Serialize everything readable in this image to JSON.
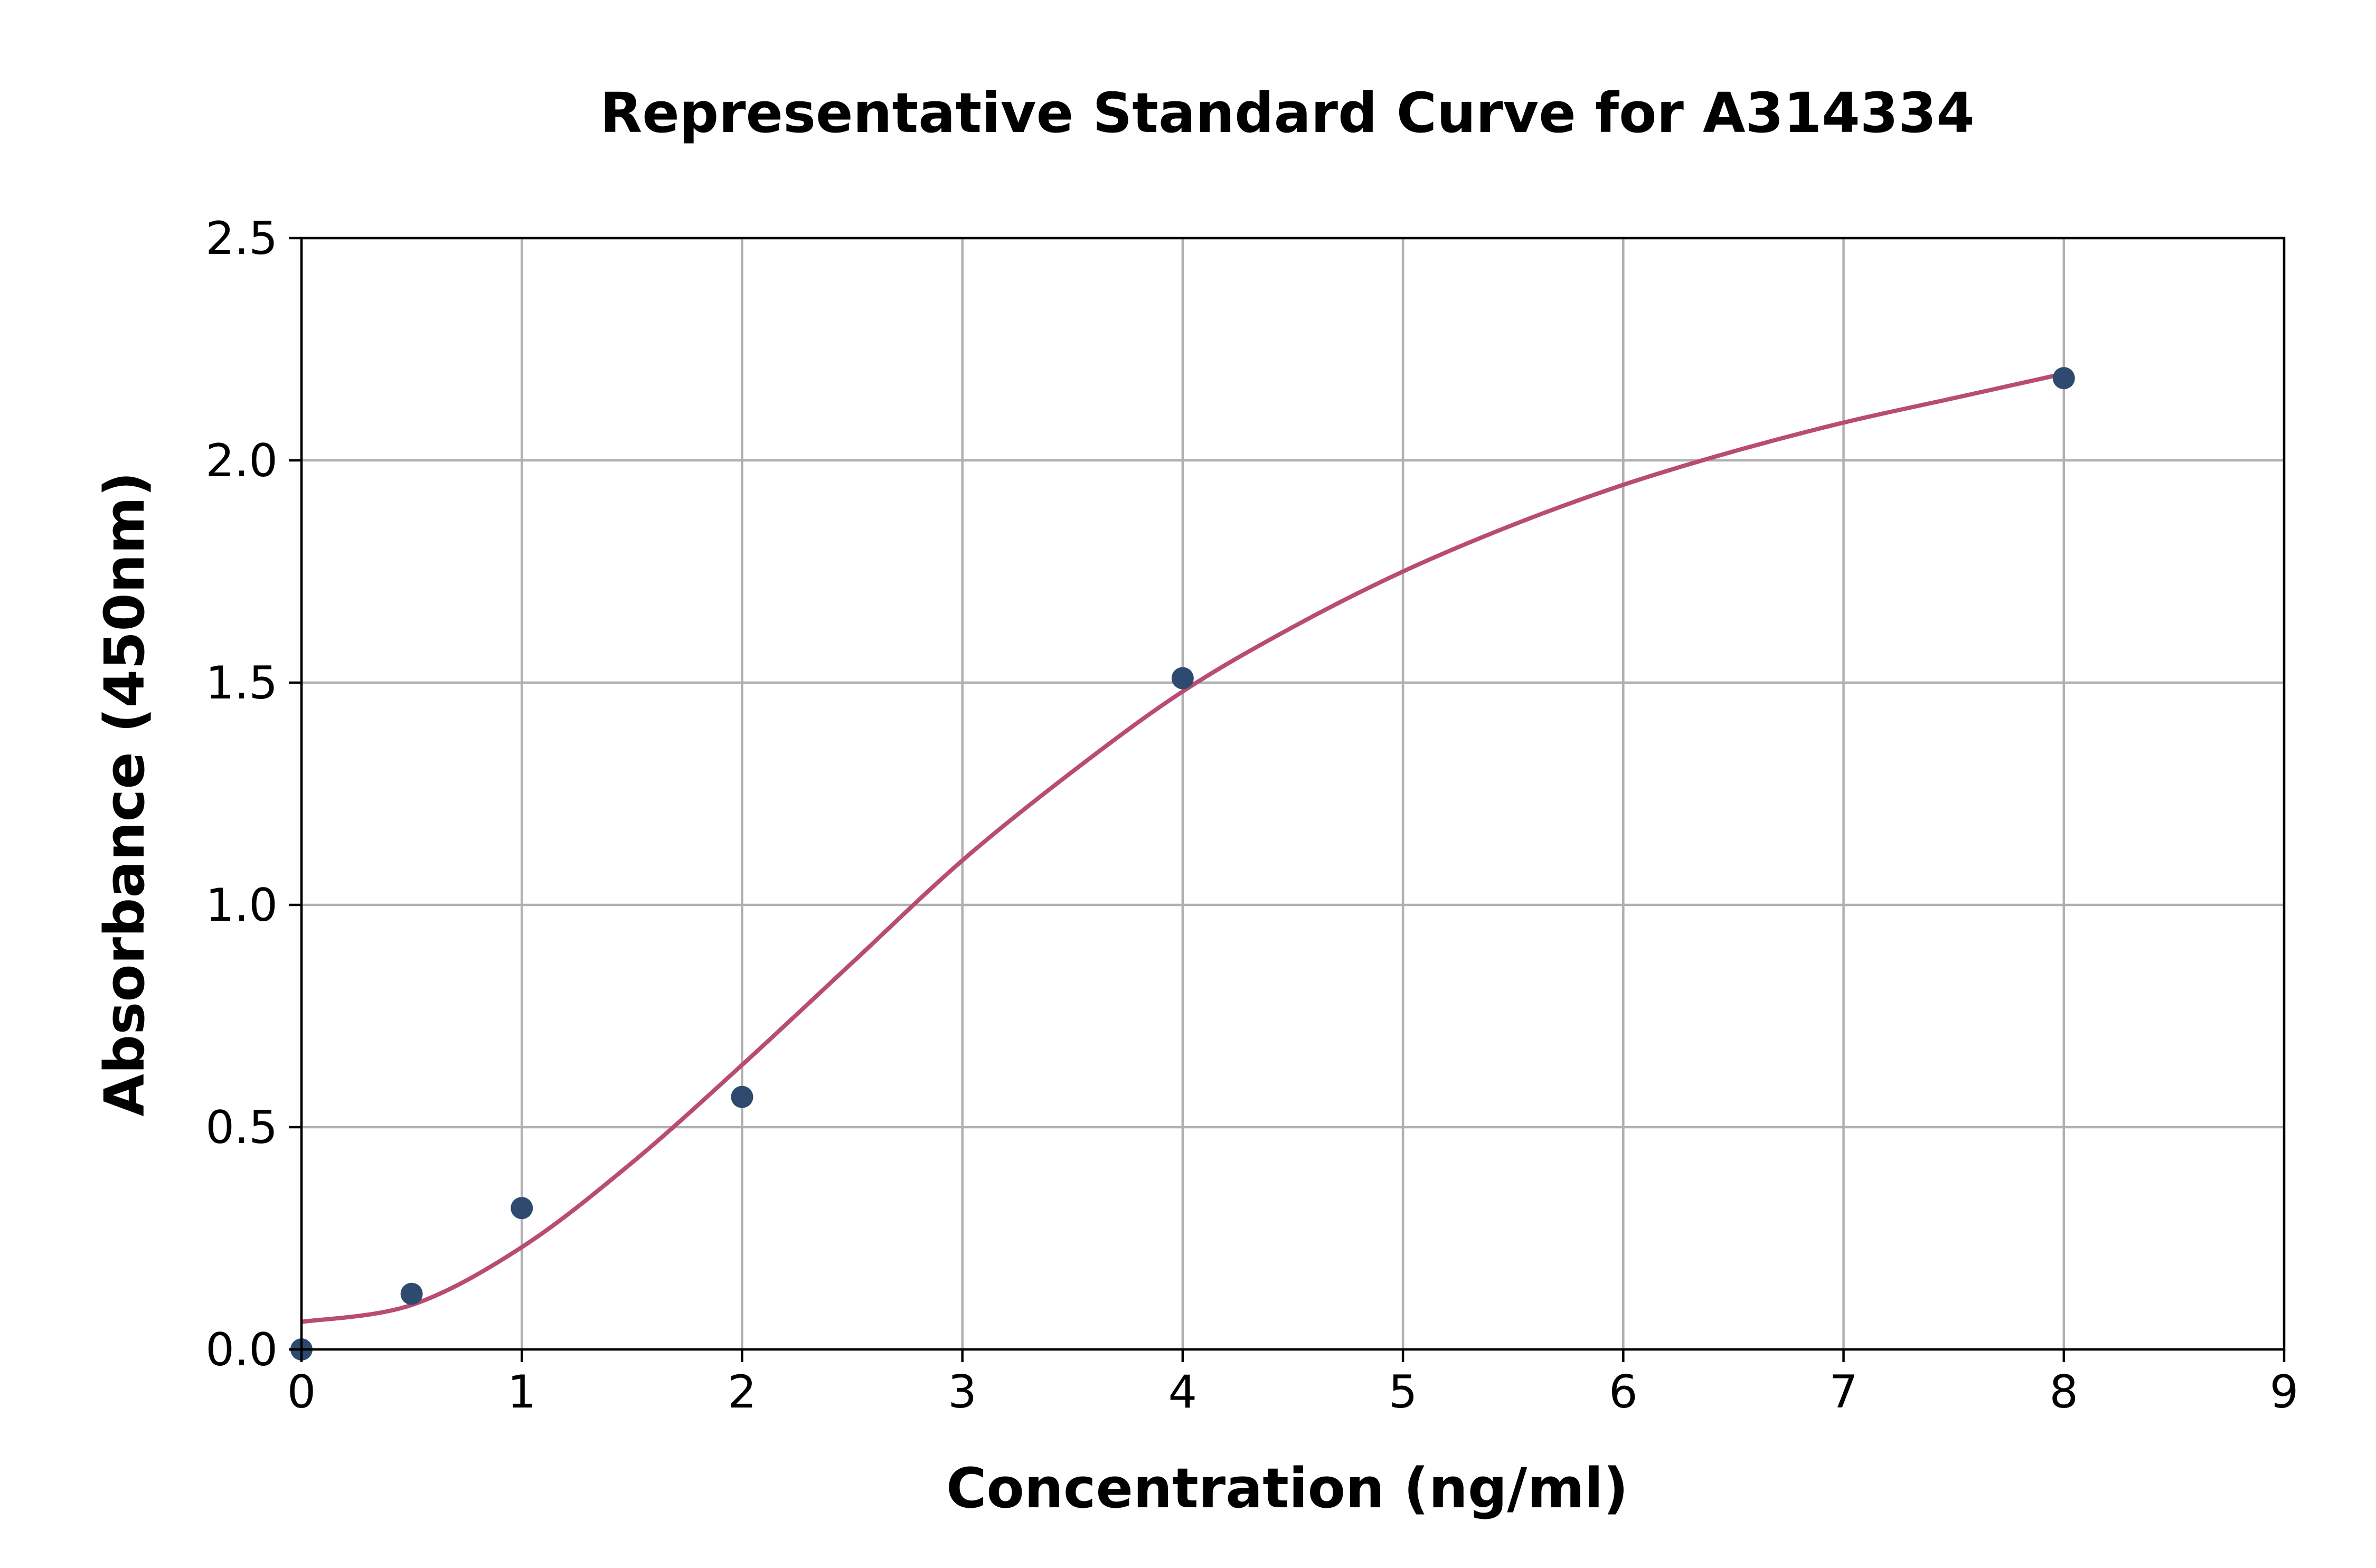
{
  "chart_data": {
    "type": "scatter",
    "title": "Representative Standard Curve for A314334",
    "xlabel": "Concentration (ng/ml)",
    "ylabel": "Absorbance (450nm)",
    "xlim": [
      0,
      9
    ],
    "ylim": [
      0,
      2.5
    ],
    "xticks": [
      0,
      1,
      2,
      3,
      4,
      5,
      6,
      7,
      8,
      9
    ],
    "yticks": [
      0.0,
      0.5,
      1.0,
      1.5,
      2.0,
      2.5
    ],
    "xtick_labels": [
      "0",
      "1",
      "2",
      "3",
      "4",
      "5",
      "6",
      "7",
      "8",
      "9"
    ],
    "ytick_labels": [
      "0.0",
      "0.5",
      "1.0",
      "1.5",
      "2.0",
      "2.5"
    ],
    "grid": true,
    "series": [
      {
        "kind": "points",
        "color": "#2e4a6e",
        "x": [
          0,
          0.5,
          1,
          2,
          4,
          8
        ],
        "y": [
          0.0,
          0.125,
          0.318,
          0.568,
          1.51,
          2.185
        ]
      },
      {
        "kind": "fitted-curve",
        "color": "#b84c73",
        "x": [
          0,
          0.5,
          1,
          1.5,
          2,
          2.5,
          3,
          3.5,
          4,
          4.5,
          5,
          5.5,
          6,
          6.5,
          7,
          7.5,
          8
        ],
        "y": [
          0.062,
          0.1,
          0.23,
          0.42,
          0.64,
          0.87,
          1.1,
          1.3,
          1.48,
          1.625,
          1.75,
          1.855,
          1.945,
          2.02,
          2.085,
          2.14,
          2.195
        ]
      }
    ]
  }
}
